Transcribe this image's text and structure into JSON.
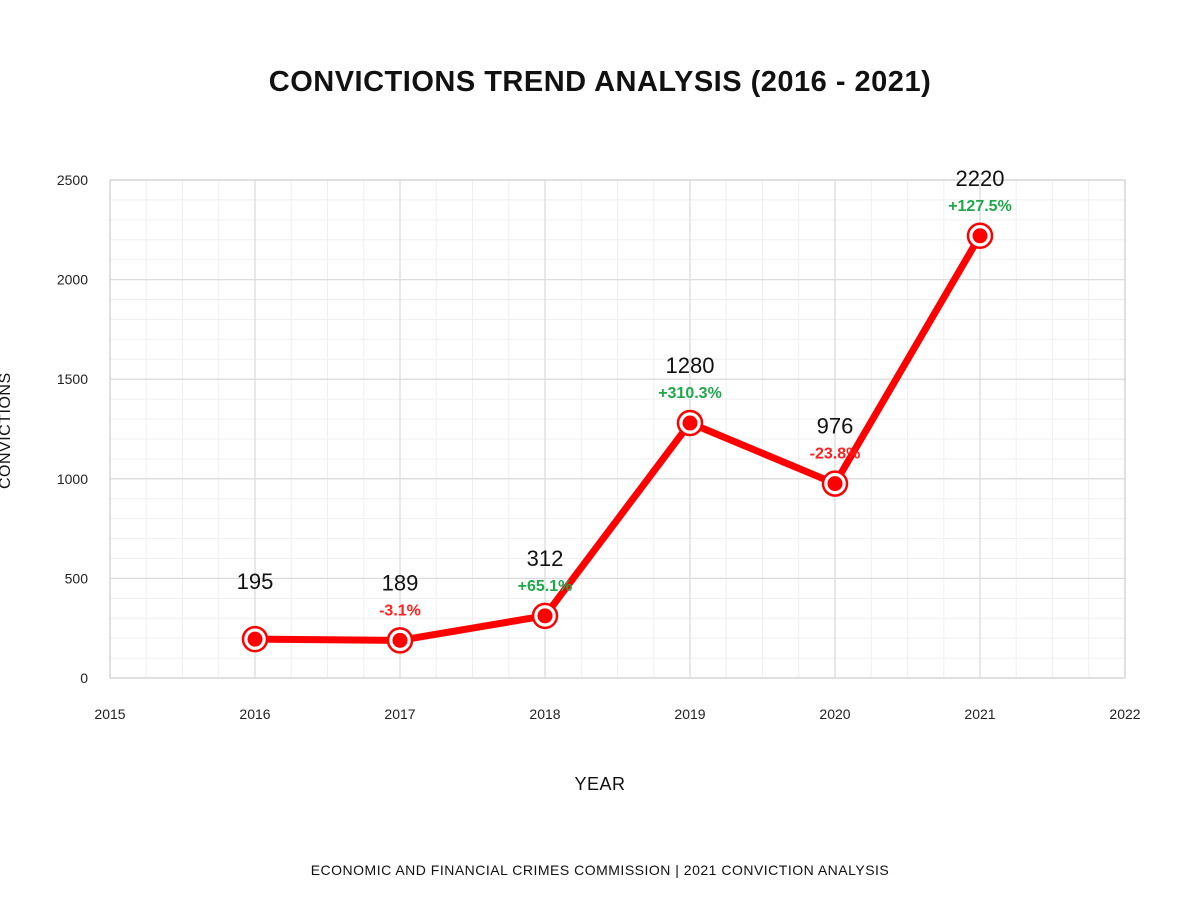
{
  "chart_data": {
    "type": "line",
    "title": "CONVICTIONS TREND ANALYSIS (2016 - 2021)",
    "xlabel": "YEAR",
    "ylabel": "CONVICTIONS",
    "footer": "ECONOMIC AND FINANCIAL CRIMES COMMISSION | 2021 CONVICTION ANALYSIS",
    "x": [
      2016,
      2017,
      2018,
      2019,
      2020,
      2021
    ],
    "y": [
      195,
      189,
      312,
      1280,
      976,
      2220
    ],
    "value_labels": [
      "195",
      "189",
      "312",
      "1280",
      "976",
      "2220"
    ],
    "change_labels": [
      "",
      "-3.1%",
      "+65.1%",
      "+310.3%",
      "-23.8%",
      "+127.5%"
    ],
    "change_colors": [
      "",
      "#ff2020",
      "#1fa84a",
      "#1fa84a",
      "#ff2020",
      "#1fa84a"
    ],
    "xlim": [
      2015,
      2022
    ],
    "ylim": [
      0,
      2500
    ],
    "xticks": [
      2015,
      2016,
      2017,
      2018,
      2019,
      2020,
      2021,
      2022
    ],
    "yticks": [
      0,
      500,
      1000,
      1500,
      2000,
      2500
    ],
    "grid": true,
    "line_color": "#ff0000"
  }
}
